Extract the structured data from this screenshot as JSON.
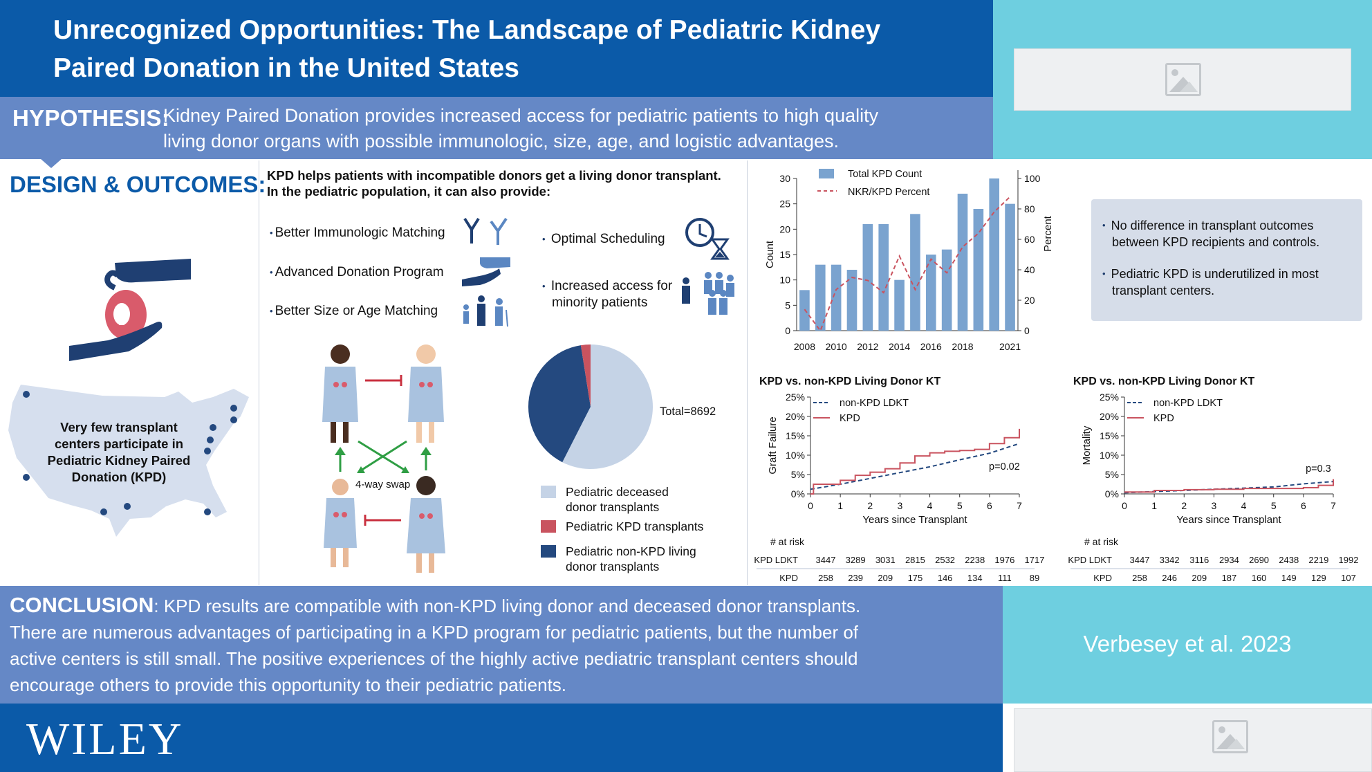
{
  "title": {
    "line1": "Unrecognized Opportunities: The Landscape of Pediatric Kidney",
    "line2": "Paired Donation in the United States"
  },
  "hypothesis": {
    "label": "HYPOTHESIS:",
    "line1": "Kidney Paired Donation provides increased access for pediatric patients to high quality",
    "line2": "living donor organs with possible immunologic, size, age, and logistic advantages."
  },
  "design": {
    "label": "DESIGN & OUTCOMES:",
    "map_text": [
      "Very few transplant",
      "centers participate in",
      "Pediatric Kidney Paired",
      "Donation (KPD)"
    ],
    "intro1": "KPD helps patients with incompatible donors get a living donor transplant.",
    "intro2": "In the pediatric population, it can also provide:",
    "features_left": [
      "Better Immunologic Matching",
      "Advanced Donation Program",
      "Better Size or Age Matching"
    ],
    "features_right": [
      "Optimal Scheduling",
      "Increased access for",
      "minority patients"
    ],
    "swap_label": "4-way swap"
  },
  "pie": {
    "total_label": "Total=8692",
    "legend": [
      "Pediatric deceased",
      "donor transplants",
      "Pediatric KPD transplants",
      "Pediatric non-KPD living",
      "donor transplants"
    ],
    "colors": {
      "deceased": "#c5d3e6",
      "kpd": "#c9535f",
      "nonkpd": "#24497f"
    }
  },
  "findings": [
    [
      "No difference in transplant outcomes",
      "between KPD recipients and controls."
    ],
    [
      "Pediatric KPD is underutilized in most",
      "transplant centers."
    ]
  ],
  "conclusion": {
    "label": "CONCLUSION",
    "text1": ": KPD results are compatible with non-KPD living donor and deceased donor transplants.",
    "text2": "There are numerous advantages of participating in a KPD program for pediatric patients, but the number of",
    "text3": "active centers is still small. The positive experiences of the highly active pediatric transplant centers should",
    "text4": "encourage others to provide this opportunity to their pediatric patients."
  },
  "citation": "Verbesey et al. 2023",
  "brand": "WILEY",
  "chart_data": [
    {
      "type": "bar",
      "title": "",
      "categories": [
        "2008",
        "2009",
        "2010",
        "2011",
        "2012",
        "2013",
        "2014",
        "2015",
        "2016",
        "2017",
        "2018",
        "2019",
        "2020",
        "2021"
      ],
      "x_tick_labels": [
        "2008",
        "2010",
        "2012",
        "2014",
        "2016",
        "2018",
        "2021"
      ],
      "series": [
        {
          "name": "Total KPD Count",
          "type": "bar",
          "axis": "left",
          "values": [
            8,
            13,
            13,
            12,
            21,
            21,
            10,
            23,
            15,
            16,
            27,
            24,
            30,
            25
          ]
        },
        {
          "name": "NKR/KPD Percent",
          "type": "line",
          "axis": "right",
          "values": [
            14,
            0,
            27,
            35,
            33,
            25,
            49,
            27,
            47,
            38,
            55,
            64,
            78,
            88
          ]
        }
      ],
      "ylabel": "Count",
      "ylim": [
        0,
        30
      ],
      "yticks": [
        0,
        5,
        10,
        15,
        20,
        25,
        30
      ],
      "y2label": "Percent",
      "y2lim": [
        0,
        100
      ],
      "y2ticks": [
        0,
        20,
        40,
        60,
        80,
        100
      ],
      "colors": {
        "bar": "#7aa3cf",
        "line": "#c9535f"
      }
    },
    {
      "type": "line",
      "title": "KPD vs. non-KPD Living Donor KT",
      "xlabel": "Years since Transplant",
      "ylabel": "Graft Failure",
      "xlim": [
        0,
        7
      ],
      "ylim": [
        0,
        25
      ],
      "yticks": [
        "0%",
        "5%",
        "10%",
        "15%",
        "20%",
        "25%"
      ],
      "annotation": "p=0.02",
      "series": [
        {
          "name": "non-KPD LDKT",
          "x": [
            0,
            1,
            2,
            3,
            4,
            5,
            6,
            7
          ],
          "y": [
            1.2,
            2.5,
            4.0,
            5.5,
            7.0,
            8.8,
            10.5,
            13.0
          ]
        },
        {
          "name": "KPD",
          "x": [
            0,
            0.1,
            1,
            1.5,
            2,
            2.5,
            3,
            3.5,
            4,
            4.5,
            5,
            5.5,
            6,
            6.5,
            7
          ],
          "y": [
            0,
            2.5,
            3.5,
            4.8,
            5.6,
            6.5,
            8.0,
            9.8,
            10.6,
            11.0,
            11.2,
            11.5,
            13.0,
            14.5,
            16.8
          ]
        }
      ],
      "at_risk": {
        "header": "#  at risk",
        "rows": [
          {
            "label": "non-KPD LDKT",
            "values": [
              "3447",
              "3289",
              "3031",
              "2815",
              "2532",
              "2238",
              "1976",
              "1717"
            ]
          },
          {
            "label": "KPD",
            "values": [
              "258",
              "239",
              "209",
              "175",
              "146",
              "134",
              "111",
              "89"
            ]
          }
        ]
      },
      "colors": {
        "nonkpd": "#24497f",
        "kpd": "#c9535f"
      }
    },
    {
      "type": "line",
      "title": "KPD vs. non-KPD Living Donor KT",
      "xlabel": "Years since Transplant",
      "ylabel": "Mortality",
      "xlim": [
        0,
        7
      ],
      "ylim": [
        0,
        25
      ],
      "yticks": [
        "0%",
        "5%",
        "10%",
        "15%",
        "20%",
        "25%"
      ],
      "annotation": "p=0.3",
      "series": [
        {
          "name": "non-KPD LDKT",
          "x": [
            0,
            1,
            2,
            3,
            4,
            5,
            6,
            7
          ],
          "y": [
            0.3,
            0.6,
            0.9,
            1.2,
            1.5,
            1.8,
            2.6,
            3.2
          ]
        },
        {
          "name": "KPD",
          "x": [
            0,
            1,
            2,
            3,
            4,
            5,
            6,
            6.5,
            7
          ],
          "y": [
            0.5,
            0.9,
            1.1,
            1.2,
            1.4,
            1.4,
            1.6,
            2.2,
            3.8
          ]
        }
      ],
      "at_risk": {
        "header": "#  at risk",
        "rows": [
          {
            "label": "non-KPD LDKT",
            "values": [
              "3447",
              "3342",
              "3116",
              "2934",
              "2690",
              "2438",
              "2219",
              "1992"
            ]
          },
          {
            "label": "KPD",
            "values": [
              "258",
              "246",
              "209",
              "187",
              "160",
              "149",
              "129",
              "107"
            ]
          }
        ]
      },
      "colors": {
        "nonkpd": "#24497f",
        "kpd": "#c9535f"
      }
    }
  ]
}
